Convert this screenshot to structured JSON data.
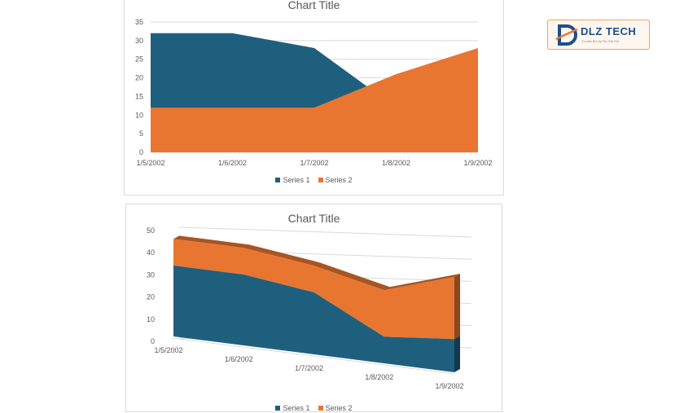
{
  "logo": {
    "name": "DLZ TECH",
    "tagline": "Tư vấn Số Uy Tín Giá Tốt"
  },
  "colors": {
    "series1": "#1f5f7e",
    "series2": "#e87631",
    "grid": "#d9d9d9",
    "text": "#595959"
  },
  "chart_data": [
    {
      "type": "area",
      "title": "Chart Title",
      "categories": [
        "1/5/2002",
        "1/6/2002",
        "1/7/2002",
        "1/8/2002",
        "1/9/2002"
      ],
      "series": [
        {
          "name": "Series 1",
          "values": [
            32,
            32,
            28,
            12,
            15
          ]
        },
        {
          "name": "Series 2",
          "values": [
            12,
            12,
            12,
            21,
            28
          ]
        }
      ],
      "ylim": [
        0,
        35
      ],
      "yticks": [
        0,
        5,
        10,
        15,
        20,
        25,
        30,
        35
      ],
      "grid": true,
      "legend": "bottom"
    },
    {
      "type": "area",
      "title": "Chart Title",
      "subtype": "3d-stacked",
      "categories": [
        "1/5/2002",
        "1/6/2002",
        "1/7/2002",
        "1/8/2002",
        "1/9/2002"
      ],
      "series": [
        {
          "name": "Series 1",
          "values": [
            32,
            32,
            28,
            12,
            15
          ]
        },
        {
          "name": "Series 2",
          "values": [
            12,
            12,
            12,
            21,
            28
          ]
        }
      ],
      "ylim": [
        0,
        50
      ],
      "yticks": [
        0,
        10,
        20,
        30,
        40,
        50
      ],
      "grid": true,
      "legend": "bottom"
    }
  ]
}
